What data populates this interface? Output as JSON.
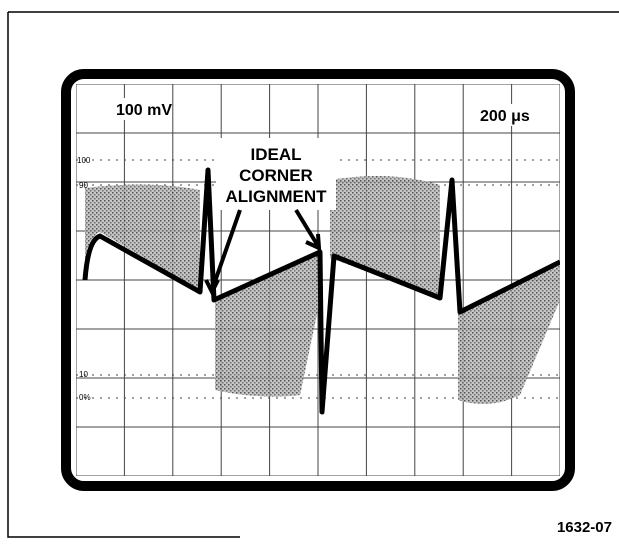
{
  "header": {
    "volts_per_div": "100 mV",
    "time_per_div": "200 μs"
  },
  "annotation": {
    "lines": [
      "IDEAL",
      "CORNER",
      "ALIGNMENT"
    ]
  },
  "graticule_labels": [
    "100",
    "90",
    "10",
    "0%"
  ],
  "figure_id": "1632-07"
}
